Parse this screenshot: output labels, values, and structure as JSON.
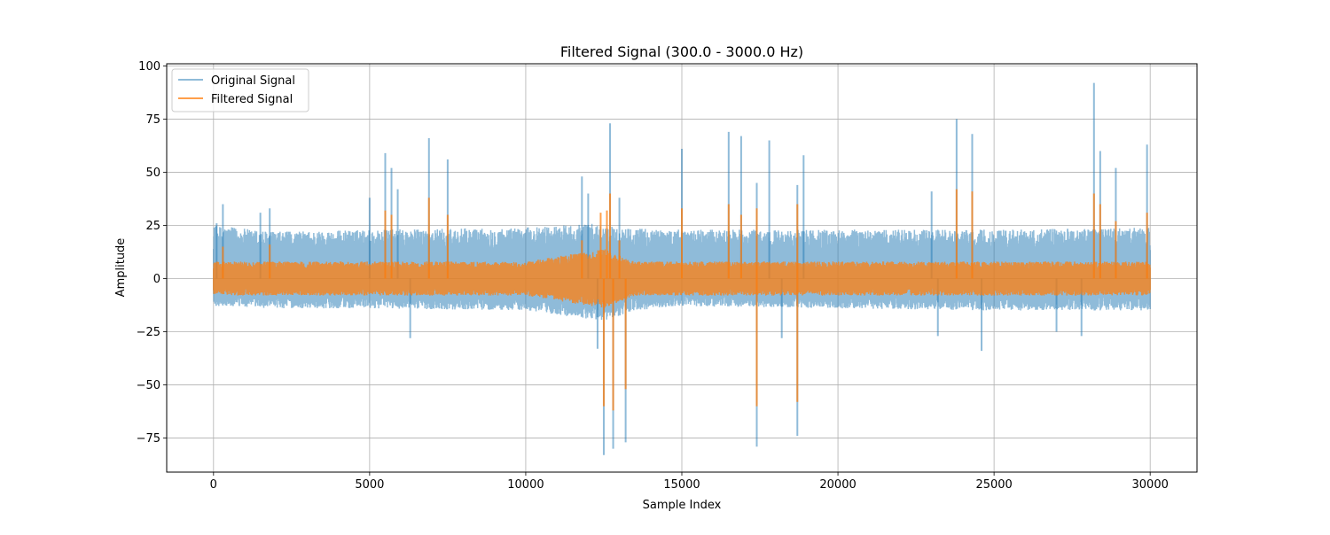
{
  "chart_data": {
    "type": "line",
    "title": "Filtered Signal (300.0 - 3000.0 Hz)",
    "xlabel": "Sample Index",
    "ylabel": "Amplitude",
    "xlim": [
      -1500,
      31500
    ],
    "ylim": [
      -91,
      101
    ],
    "xticks": [
      0,
      5000,
      10000,
      15000,
      20000,
      25000,
      30000
    ],
    "yticks": [
      -75,
      -50,
      -25,
      0,
      25,
      50,
      75,
      100
    ],
    "xtick_labels": [
      "0",
      "5000",
      "10000",
      "15000",
      "20000",
      "25000",
      "30000"
    ],
    "ytick_labels": [
      "−75",
      "−50",
      "−25",
      "0",
      "25",
      "50",
      "75",
      "100"
    ],
    "grid": true,
    "legend_position": "upper-left",
    "n_samples": 30000,
    "series": [
      {
        "name": "Original Signal",
        "color": "#1f77b4",
        "alpha": 0.5,
        "envelope_upper": [
          [
            0,
            25
          ],
          [
            2000,
            22
          ],
          [
            5000,
            23
          ],
          [
            10000,
            24
          ],
          [
            12000,
            26
          ],
          [
            13000,
            24
          ],
          [
            15000,
            23
          ],
          [
            20000,
            23
          ],
          [
            25000,
            23
          ],
          [
            30000,
            24
          ]
        ],
        "envelope_lower": [
          [
            0,
            -13
          ],
          [
            2000,
            -14
          ],
          [
            5000,
            -14
          ],
          [
            10000,
            -15
          ],
          [
            12500,
            -20
          ],
          [
            13500,
            -15
          ],
          [
            15000,
            -13
          ],
          [
            20000,
            -14
          ],
          [
            25000,
            -15
          ],
          [
            30000,
            -15
          ]
        ],
        "spikes": [
          [
            100,
            26
          ],
          [
            300,
            35
          ],
          [
            1500,
            31
          ],
          [
            1800,
            33
          ],
          [
            5000,
            38
          ],
          [
            5500,
            59
          ],
          [
            5700,
            52
          ],
          [
            5900,
            42
          ],
          [
            6300,
            -28
          ],
          [
            6900,
            66
          ],
          [
            7500,
            56
          ],
          [
            11800,
            48
          ],
          [
            12000,
            40
          ],
          [
            12300,
            -33
          ],
          [
            12500,
            -83
          ],
          [
            12700,
            73
          ],
          [
            12800,
            -80
          ],
          [
            13000,
            38
          ],
          [
            13200,
            -77
          ],
          [
            15000,
            61
          ],
          [
            16500,
            69
          ],
          [
            16900,
            67
          ],
          [
            17400,
            45
          ],
          [
            17400,
            -79
          ],
          [
            17800,
            65
          ],
          [
            18200,
            -28
          ],
          [
            18700,
            44
          ],
          [
            18700,
            -74
          ],
          [
            18900,
            58
          ],
          [
            23000,
            41
          ],
          [
            23200,
            -27
          ],
          [
            23800,
            75
          ],
          [
            24300,
            68
          ],
          [
            24600,
            -34
          ],
          [
            27000,
            -25
          ],
          [
            27800,
            -27
          ],
          [
            28200,
            92
          ],
          [
            28400,
            60
          ],
          [
            28900,
            52
          ],
          [
            29900,
            63
          ]
        ]
      },
      {
        "name": "Filtered Signal",
        "color": "#ff7f0e",
        "alpha": 0.75,
        "envelope_upper": [
          [
            0,
            8
          ],
          [
            2000,
            8
          ],
          [
            5000,
            8
          ],
          [
            10000,
            8
          ],
          [
            12500,
            14
          ],
          [
            13500,
            8
          ],
          [
            15000,
            8
          ],
          [
            20000,
            8
          ],
          [
            25000,
            8
          ],
          [
            30000,
            8
          ]
        ],
        "envelope_lower": [
          [
            0,
            -8
          ],
          [
            2000,
            -8
          ],
          [
            5000,
            -8
          ],
          [
            10000,
            -8
          ],
          [
            12500,
            -14
          ],
          [
            13500,
            -8
          ],
          [
            15000,
            -8
          ],
          [
            20000,
            -8
          ],
          [
            25000,
            -8
          ],
          [
            30000,
            -8
          ]
        ],
        "spikes": [
          [
            300,
            15
          ],
          [
            1800,
            16
          ],
          [
            5500,
            32
          ],
          [
            5700,
            30
          ],
          [
            6900,
            38
          ],
          [
            7500,
            30
          ],
          [
            11800,
            18
          ],
          [
            12400,
            31
          ],
          [
            12500,
            -60
          ],
          [
            12600,
            32
          ],
          [
            12700,
            40
          ],
          [
            12800,
            -62
          ],
          [
            13000,
            18
          ],
          [
            13200,
            -52
          ],
          [
            15000,
            33
          ],
          [
            16500,
            35
          ],
          [
            16900,
            30
          ],
          [
            17400,
            33
          ],
          [
            17400,
            -60
          ],
          [
            18700,
            35
          ],
          [
            18700,
            -58
          ],
          [
            23800,
            42
          ],
          [
            24300,
            41
          ],
          [
            28200,
            40
          ],
          [
            28400,
            35
          ],
          [
            28900,
            27
          ],
          [
            29900,
            31
          ]
        ]
      }
    ]
  }
}
